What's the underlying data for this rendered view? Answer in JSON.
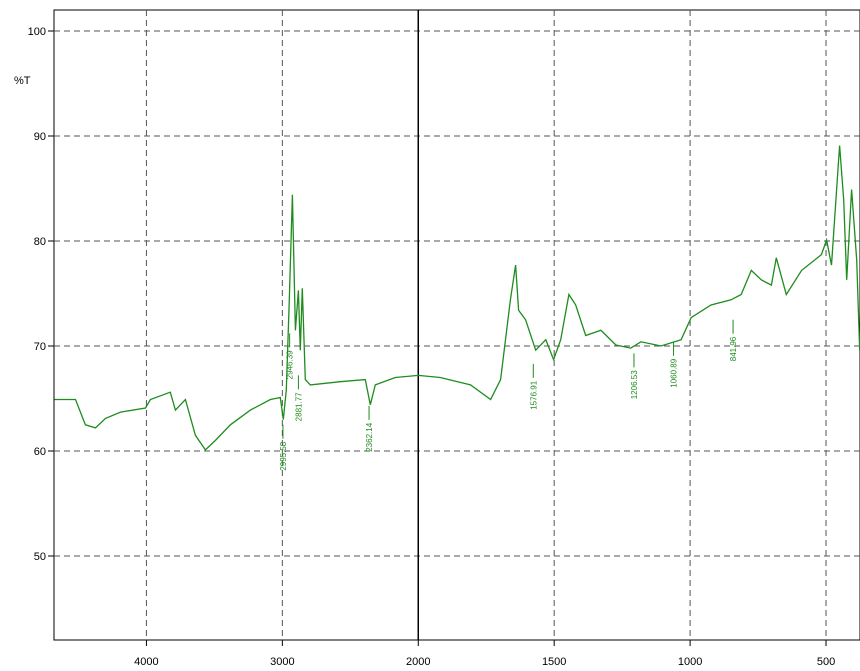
{
  "chart_data": {
    "type": "line",
    "y_label": "%T",
    "x": [
      4677,
      4522,
      4449,
      4375,
      4301,
      4191,
      4007,
      3971,
      3824,
      3787,
      3713,
      3640,
      3566,
      3493,
      3382,
      3235,
      3088,
      3015,
      2993,
      2971,
      2949,
      2926,
      2904,
      2882,
      2868,
      2853,
      2831,
      2794,
      2574,
      2390,
      2353,
      2316,
      2169,
      2000,
      1919,
      1808,
      1734,
      1697,
      1661,
      1642,
      1631,
      1605,
      1568,
      1531,
      1502,
      1476,
      1446,
      1421,
      1384,
      1328,
      1273,
      1218,
      1181,
      1107,
      1033,
      996,
      923,
      849,
      812,
      775,
      738,
      701,
      683,
      646,
      590,
      517,
      498,
      480,
      450,
      435,
      424,
      406,
      387,
      376
    ],
    "series": [
      {
        "name": "%T",
        "color": "#1e8c1e",
        "values": [
          64.9,
          64.9,
          62.5,
          62.2,
          63.1,
          63.7,
          64.1,
          64.9,
          65.6,
          63.9,
          64.9,
          61.5,
          60.1,
          61.0,
          62.5,
          63.9,
          64.9,
          65.1,
          63.0,
          65.8,
          74.4,
          84.4,
          71.5,
          75.3,
          69.6,
          75.5,
          66.8,
          66.3,
          66.6,
          66.8,
          64.4,
          66.3,
          67.0,
          67.2,
          67.0,
          66.3,
          64.9,
          66.8,
          74.4,
          77.7,
          73.4,
          72.5,
          69.6,
          70.6,
          68.7,
          70.6,
          74.9,
          73.9,
          71.0,
          71.5,
          70.1,
          69.8,
          70.4,
          70.0,
          70.6,
          72.7,
          73.9,
          74.4,
          74.9,
          77.2,
          76.3,
          75.8,
          78.4,
          74.9,
          77.2,
          78.7,
          80.1,
          77.7,
          89.1,
          83.9,
          76.3,
          84.9,
          78.2,
          69.6
        ]
      }
    ],
    "peaks": [
      {
        "x": 2995.58,
        "y": 62.5
      },
      {
        "x": 2946.39,
        "y": 71.2
      },
      {
        "x": 2881.77,
        "y": 67.2
      },
      {
        "x": 2362.14,
        "y": 64.3
      },
      {
        "x": 1576.91,
        "y": 68.3
      },
      {
        "x": 1206.53,
        "y": 69.3
      },
      {
        "x": 1060.89,
        "y": 70.4
      },
      {
        "x": 841.96,
        "y": 72.5
      }
    ],
    "xlim": [
      4680,
      375
    ],
    "x_scale_break": 2000,
    "xticks": [
      4000,
      3000,
      2000,
      1500,
      1000,
      500
    ],
    "ylim": [
      42,
      102
    ],
    "yticks": [
      100,
      90,
      80,
      70,
      60,
      50
    ],
    "grid": true
  }
}
